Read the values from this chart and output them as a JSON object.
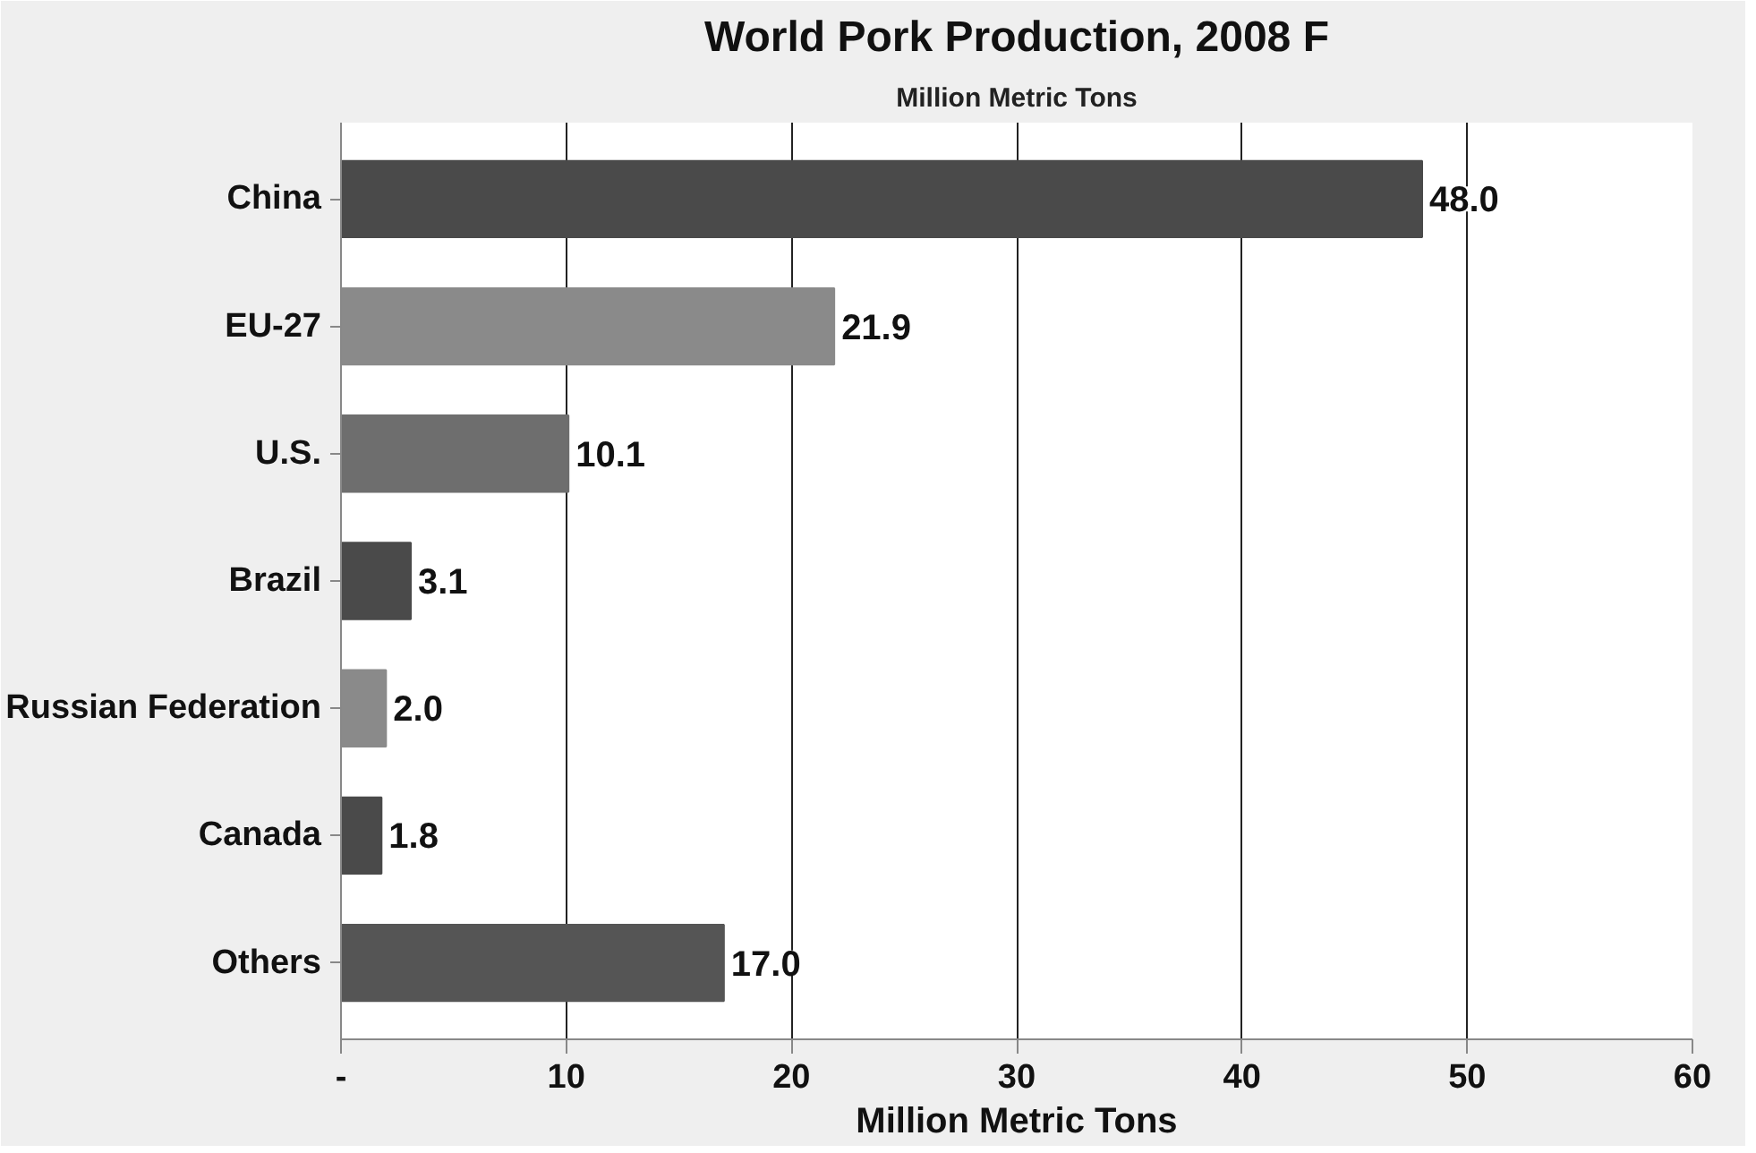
{
  "chart_data": {
    "type": "bar",
    "orientation": "horizontal",
    "title": "World Pork Production, 2008 F",
    "subtitle": "Million Metric Tons",
    "xlabel": "Million Metric Tons",
    "categories": [
      "China",
      "EU-27",
      "U.S.",
      "Brazil",
      "Russian Federation",
      "Canada",
      "Others"
    ],
    "values": [
      48.0,
      21.9,
      10.1,
      3.1,
      2.0,
      1.8,
      17.0
    ],
    "colors": [
      "#4a4a4a",
      "#8a8a8a",
      "#6e6e6e",
      "#4a4a4a",
      "#8a8a8a",
      "#4a4a4a",
      "#555555"
    ],
    "xlim": [
      0,
      60
    ],
    "xticks": [
      {
        "value": 0,
        "label": "-"
      },
      10,
      20,
      30,
      40,
      50,
      60
    ],
    "value_labels": [
      "48.0",
      "21.9",
      "10.1",
      "3.1",
      "2.0",
      "1.8",
      "17.0"
    ],
    "grid": "x"
  }
}
